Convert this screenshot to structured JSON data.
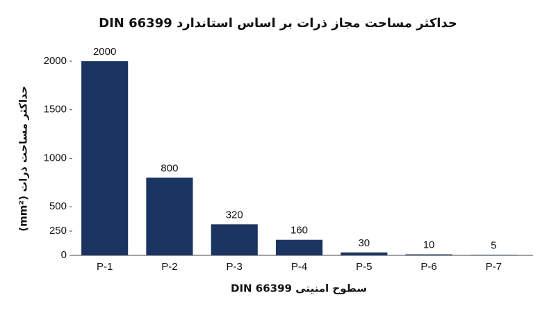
{
  "chart_data": {
    "type": "bar",
    "title": "حداکثر مساحت مجاز ذرات بر اساس استاندارد DIN 66399",
    "y_label": "حداکثر مساحت ذرات (mm²)",
    "x_label": "سطوح امنیتی DIN 66399",
    "categories": [
      "P-1",
      "P-2",
      "P-3",
      "P-4",
      "P-5",
      "P-6",
      "P-7"
    ],
    "values": [
      2000,
      800,
      320,
      160,
      30,
      10,
      5
    ],
    "color": "#1c3461",
    "ylim": [
      0,
      2000
    ],
    "yticks": [
      0,
      250,
      500,
      1000,
      1500,
      2000
    ],
    "grid": false
  }
}
